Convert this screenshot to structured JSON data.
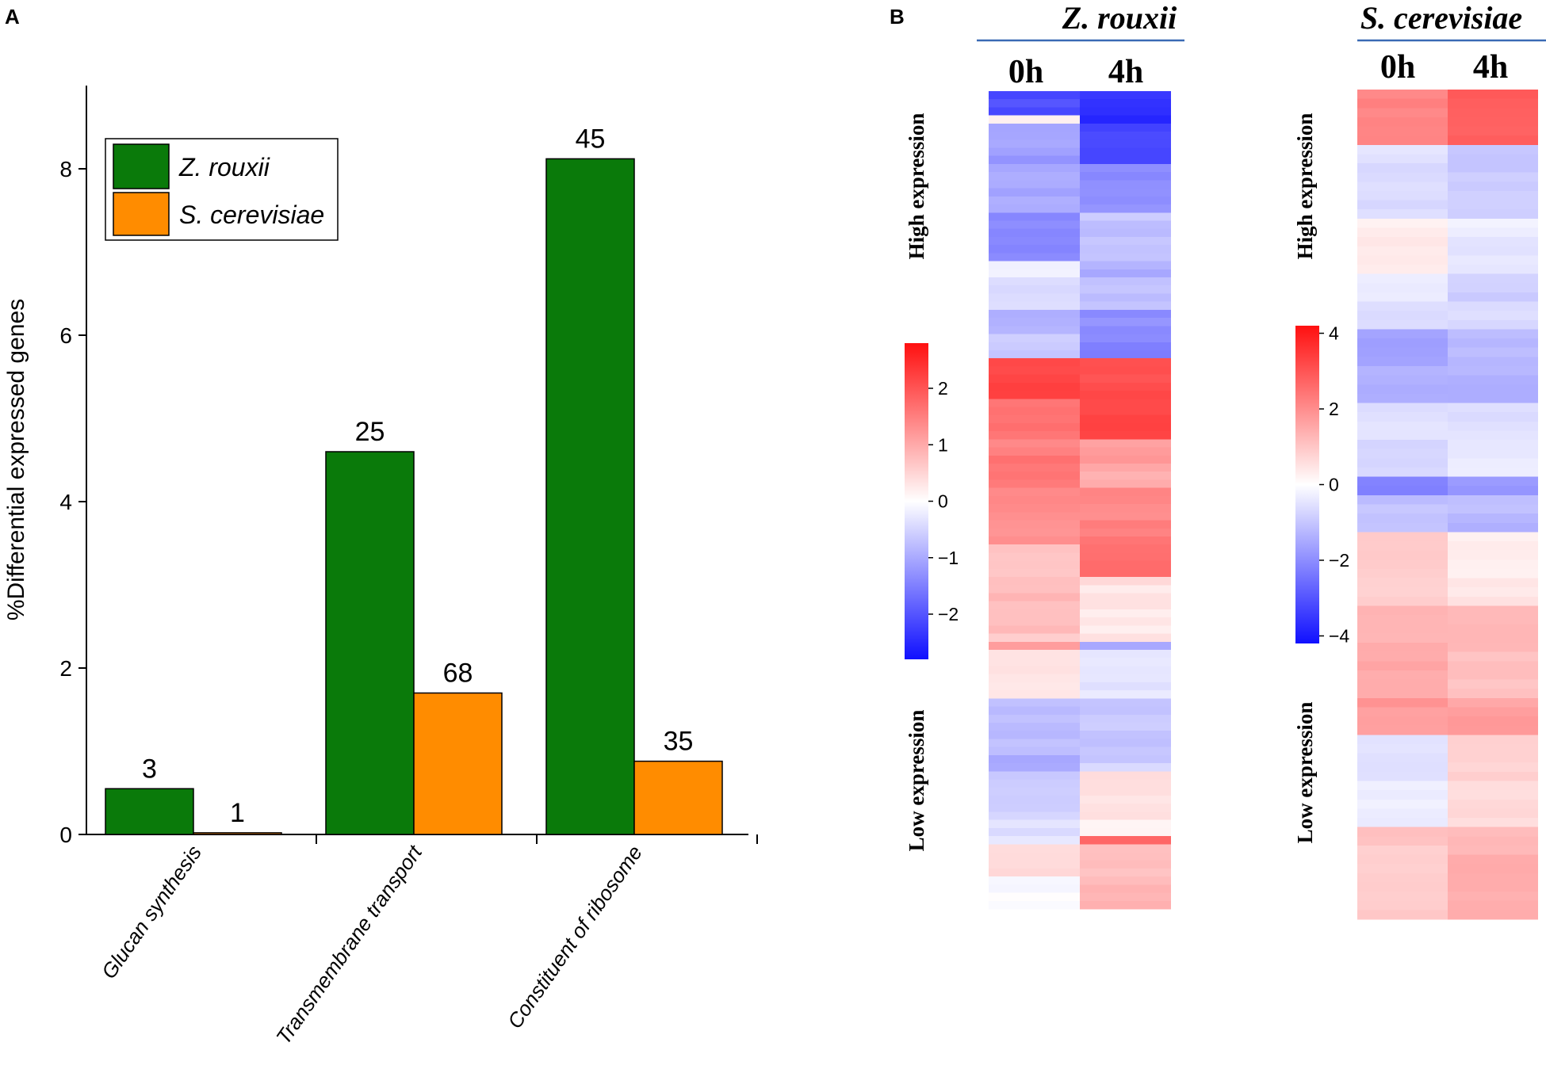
{
  "panels": {
    "a_label": "A",
    "b_label": "B"
  },
  "chart_data": [
    {
      "type": "bar",
      "panel": "A",
      "title": "",
      "xlabel": "",
      "ylabel": "%Differential expressed genes",
      "categories": [
        "Glucan synthesis",
        "Transmembrane transport",
        "Constituent of ribosome"
      ],
      "series": [
        {
          "name": "Z. rouxii",
          "color": "#0a7a0a",
          "values": [
            0.55,
            4.6,
            8.12
          ],
          "labels": [
            "3",
            "25",
            "45"
          ]
        },
        {
          "name": "S. cerevisiae",
          "color": "#ff8c00",
          "values": [
            0.02,
            1.7,
            0.88
          ],
          "labels": [
            "1",
            "68",
            "35"
          ]
        }
      ],
      "ylim": [
        0,
        9
      ],
      "yticks": [
        0,
        2,
        4,
        6,
        8
      ],
      "legend": "top-left",
      "grid": false
    },
    {
      "type": "heatmap",
      "panel": "B",
      "title": "Z. rouxii",
      "columns": [
        "0h",
        "4h"
      ],
      "row_labels": {
        "top": "High expression",
        "bottom": "Low expression"
      },
      "colorbar": {
        "ticks": [
          2,
          1,
          0,
          -1,
          -2
        ],
        "tick_labels": [
          "2",
          "1",
          "0",
          "−1",
          "−2"
        ],
        "range": [
          -2.8,
          2.8
        ]
      },
      "segments": [
        {
          "rows": 3,
          "v": [
            -2.3,
            -2.5
          ]
        },
        {
          "rows": 1,
          "v": [
            0.0,
            -2.6
          ]
        },
        {
          "rows": 5,
          "v": [
            -1.2,
            -2.2
          ]
        },
        {
          "rows": 6,
          "v": [
            -1.0,
            -1.5
          ]
        },
        {
          "rows": 6,
          "v": [
            -1.6,
            -0.7
          ]
        },
        {
          "rows": 6,
          "v": [
            -0.3,
            -0.9
          ]
        },
        {
          "rows": 6,
          "v": [
            -0.8,
            -1.5
          ]
        },
        {
          "rows": 5,
          "v": [
            2.3,
            2.4
          ]
        },
        {
          "rows": 5,
          "v": [
            1.9,
            2.3
          ]
        },
        {
          "rows": 6,
          "v": [
            1.7,
            1.2
          ]
        },
        {
          "rows": 7,
          "v": [
            1.5,
            1.6
          ]
        },
        {
          "rows": 4,
          "v": [
            0.9,
            1.8
          ]
        },
        {
          "rows": 8,
          "v": [
            0.8,
            0.4
          ]
        },
        {
          "rows": 1,
          "v": [
            1.4,
            -1.2
          ]
        },
        {
          "rows": 6,
          "v": [
            0.5,
            -0.4
          ]
        },
        {
          "rows": 9,
          "v": [
            -0.9,
            -0.6
          ]
        },
        {
          "rows": 8,
          "v": [
            -0.5,
            0.3
          ]
        },
        {
          "rows": 1,
          "v": [
            -0.4,
            2.0
          ]
        },
        {
          "rows": 8,
          "v": [
            0.2,
            0.9
          ]
        }
      ]
    },
    {
      "type": "heatmap",
      "panel": "B",
      "title": "S. cerevisiae",
      "columns": [
        "0h",
        "4h"
      ],
      "row_labels": {
        "top": "High expression",
        "bottom": "Low expression"
      },
      "colorbar": {
        "ticks": [
          4,
          2,
          0,
          -2,
          -4
        ],
        "tick_labels": [
          "4",
          "2",
          "0",
          "−2",
          "−4"
        ],
        "range": [
          -4.2,
          4.2
        ]
      },
      "segments": [
        {
          "rows": 6,
          "v": [
            2.3,
            3.2
          ]
        },
        {
          "rows": 8,
          "v": [
            -0.6,
            -1.0
          ]
        },
        {
          "rows": 6,
          "v": [
            0.3,
            -0.4
          ]
        },
        {
          "rows": 6,
          "v": [
            -0.5,
            -0.8
          ]
        },
        {
          "rows": 8,
          "v": [
            -1.6,
            -1.4
          ]
        },
        {
          "rows": 8,
          "v": [
            -0.7,
            -0.5
          ]
        },
        {
          "rows": 2,
          "v": [
            -2.2,
            -2.0
          ]
        },
        {
          "rows": 4,
          "v": [
            -1.2,
            -1.3
          ]
        },
        {
          "rows": 8,
          "v": [
            1.0,
            0.4
          ]
        },
        {
          "rows": 10,
          "v": [
            1.6,
            1.3
          ]
        },
        {
          "rows": 4,
          "v": [
            2.0,
            1.9
          ]
        },
        {
          "rows": 10,
          "v": [
            -0.4,
            0.8
          ]
        },
        {
          "rows": 10,
          "v": [
            1.1,
            1.5
          ]
        }
      ]
    }
  ]
}
